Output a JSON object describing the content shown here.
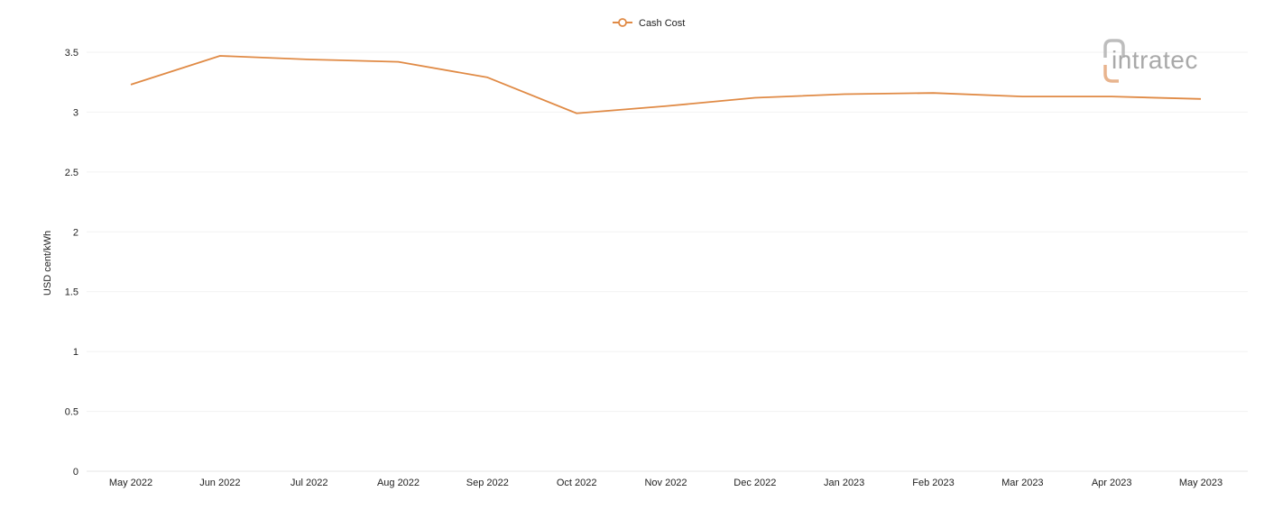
{
  "colors": {
    "series": "#e08a45",
    "logo_gray": "#a9a9a9",
    "logo_accent": "#e8b48e"
  },
  "logo": {
    "text": "intratec"
  },
  "chart_data": {
    "type": "line",
    "ylabel": "USD cent/kWh",
    "xlabel": "",
    "ylim": [
      0,
      3.5
    ],
    "yticks": [
      "0",
      "0.5",
      "1",
      "1.5",
      "2",
      "2.5",
      "3",
      "3.5"
    ],
    "grid": true,
    "legend_position": "top-center",
    "categories": [
      "May 2022",
      "Jun 2022",
      "Jul 2022",
      "Aug 2022",
      "Sep 2022",
      "Oct 2022",
      "Nov 2022",
      "Dec 2022",
      "Jan 2023",
      "Feb 2023",
      "Mar 2023",
      "Apr 2023",
      "May 2023"
    ],
    "series": [
      {
        "name": "Cash Cost",
        "values": [
          3.23,
          3.47,
          3.44,
          3.42,
          3.29,
          2.99,
          3.05,
          3.12,
          3.15,
          3.16,
          3.13,
          3.13,
          3.11
        ]
      }
    ]
  }
}
